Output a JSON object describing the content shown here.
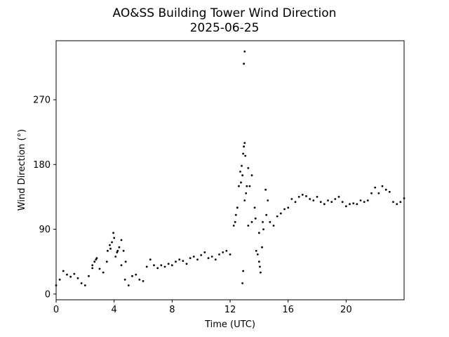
{
  "chart_data": {
    "type": "scatter",
    "title": "AO&SS Building Tower Wind Direction",
    "subtitle": "2025-06-25",
    "xlabel": "Time (UTC)",
    "ylabel": "Wind Direction (°)",
    "xlim": [
      0,
      24
    ],
    "ylim": [
      -8,
      352
    ],
    "x_ticks": [
      0,
      4,
      8,
      12,
      16,
      20
    ],
    "x_tick_labels": [
      "0",
      "4",
      "8",
      "12",
      "16",
      "20"
    ],
    "y_ticks": [
      0,
      90,
      180,
      270
    ],
    "y_tick_labels": [
      "0",
      "90",
      "180",
      "270"
    ],
    "grid": false,
    "legend": "none",
    "marker_color": "#000000",
    "series": [
      {
        "x": [
          0.0,
          0.25,
          0.5,
          0.75,
          1.0,
          1.25,
          1.5,
          1.75,
          2.0,
          2.25,
          2.5,
          2.75,
          3.0,
          3.25,
          3.5,
          3.75,
          4.0,
          4.25,
          4.5,
          4.75,
          5.0,
          5.25,
          5.5,
          5.75,
          6.0,
          6.25,
          6.5,
          6.75,
          7.0,
          7.25,
          7.5,
          7.75,
          8.0,
          8.25,
          8.5,
          8.75,
          9.0,
          9.25,
          9.5,
          9.75,
          10.0,
          10.25,
          10.5,
          10.75,
          11.0,
          11.25,
          11.5,
          11.75,
          12.0,
          12.25,
          12.5,
          12.75,
          13.0,
          13.25,
          13.5,
          13.75,
          14.0,
          14.25,
          14.5,
          14.75,
          15.0,
          15.25,
          15.5,
          15.75,
          16.0,
          16.25,
          16.5,
          16.75,
          17.0,
          17.25,
          17.5,
          17.75,
          18.0,
          18.25,
          18.5,
          18.75,
          19.0,
          19.25,
          19.5,
          19.75,
          20.0,
          20.25,
          20.5,
          20.75,
          21.0,
          21.25,
          21.5,
          21.75,
          22.0,
          22.25,
          22.5,
          22.75,
          23.0,
          23.25,
          23.5,
          23.75,
          24.0
        ],
        "y": [
          12,
          20,
          32,
          27,
          24,
          28,
          22,
          15,
          12,
          25,
          40,
          48,
          35,
          30,
          45,
          63,
          78,
          60,
          40,
          20,
          12,
          25,
          27,
          20,
          18,
          38,
          48,
          40,
          36,
          40,
          38,
          42,
          40,
          45,
          48,
          46,
          42,
          50,
          52,
          48,
          54,
          58,
          50,
          52,
          48,
          55,
          58,
          60,
          55,
          95,
          120,
          155,
          130,
          95,
          100,
          105,
          85,
          100,
          110,
          100,
          95,
          108,
          112,
          118,
          120,
          132,
          128,
          135,
          138,
          136,
          132,
          130,
          135,
          128,
          125,
          130,
          128,
          132,
          135,
          128,
          122,
          125,
          126,
          125,
          130,
          128,
          130,
          140,
          148,
          140,
          150,
          145,
          142,
          128,
          125,
          128,
          133
        ]
      },
      {
        "x": [
          12.6,
          12.7,
          12.8,
          12.85,
          12.9,
          12.95,
          13.0,
          13.05,
          13.1,
          13.15,
          13.25,
          13.35,
          13.5,
          13.7,
          13.8,
          13.9,
          14.0,
          14.05,
          14.1,
          14.2,
          14.3,
          14.45,
          14.6,
          12.5,
          12.4,
          12.35
        ],
        "y": [
          150,
          170,
          178,
          165,
          195,
          205,
          210,
          192,
          140,
          150,
          175,
          150,
          165,
          120,
          60,
          55,
          45,
          38,
          30,
          65,
          90,
          145,
          130,
          120,
          110,
          100
        ]
      },
      {
        "x": [
          12.85,
          12.9,
          12.95,
          13.0
        ],
        "y": [
          15,
          32,
          320,
          337
        ]
      },
      {
        "x": [
          2.5,
          2.65,
          2.8,
          3.55,
          3.7,
          3.85,
          3.95,
          4.1,
          4.2,
          4.35,
          4.5,
          4.65,
          4.8
        ],
        "y": [
          36,
          45,
          50,
          60,
          68,
          72,
          85,
          52,
          58,
          65,
          75,
          60,
          45
        ]
      }
    ]
  }
}
